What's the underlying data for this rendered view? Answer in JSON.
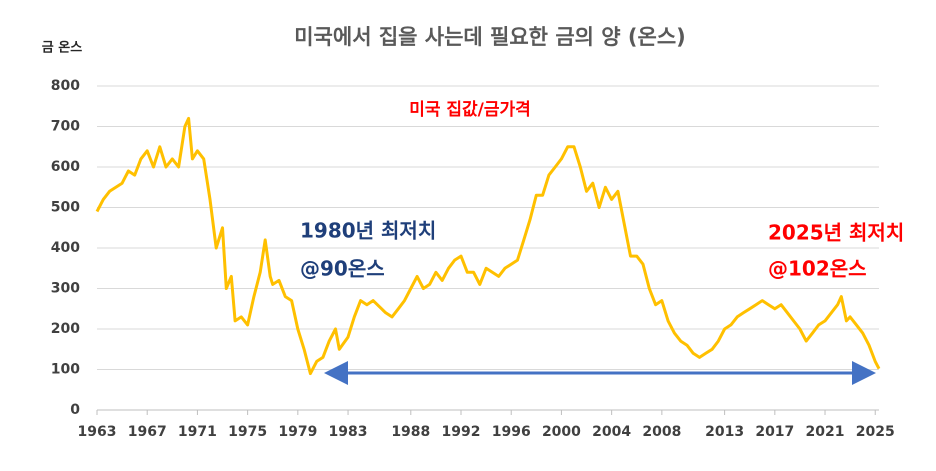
{
  "chart_data": {
    "type": "line",
    "title": "미국에서 집을 사는데 필요한 금의 양 (온스)",
    "y_label": "금 온스",
    "annotations": [
      "미국 집값/금가격",
      "1980년 최저치",
      "@90온스",
      "2025년 최저치",
      "@102온스"
    ],
    "x": [
      1963,
      1963.5,
      1964,
      1965,
      1965.5,
      1966,
      1966.5,
      1967,
      1967.5,
      1968,
      1968.5,
      1969,
      1969.5,
      1970,
      1970.3,
      1970.6,
      1971,
      1971.5,
      1972,
      1972.5,
      1973,
      1973.3,
      1973.7,
      1974,
      1974.5,
      1975,
      1975.5,
      1976,
      1976.4,
      1976.8,
      1977,
      1977.5,
      1978,
      1978.5,
      1979,
      1979.5,
      1980,
      1980.5,
      1981,
      1981.5,
      1982,
      1982.3,
      1983,
      1983.5,
      1984,
      1984.5,
      1985,
      1986,
      1986.5,
      1987,
      1987.5,
      1988,
      1988.5,
      1989,
      1989.5,
      1990,
      1990.5,
      1991,
      1991.5,
      1992,
      1992.5,
      1993,
      1993.5,
      1994,
      1995,
      1995.5,
      1996,
      1996.5,
      1997,
      1997.5,
      1998,
      1998.5,
      1999,
      1999.5,
      2000,
      2000.5,
      2001,
      2001.5,
      2002,
      2002.5,
      2003,
      2003.5,
      2004,
      2004.5,
      2005,
      2005.5,
      2006,
      2006.5,
      2007,
      2007.5,
      2008,
      2008.5,
      2009,
      2009.5,
      2010,
      2010.5,
      2011,
      2011.5,
      2012,
      2012.5,
      2013,
      2013.5,
      2014,
      2014.5,
      2015,
      2015.5,
      2016,
      2016.5,
      2017,
      2017.5,
      2018,
      2018.5,
      2019,
      2019.5,
      2020,
      2020.5,
      2021,
      2021.5,
      2022,
      2022.3,
      2022.7,
      2023,
      2023.5,
      2024,
      2024.5,
      2025,
      2025.3
    ],
    "series": [
      {
        "name": "미국 집값/금가격",
        "color": "#ffc000",
        "values": [
          490,
          520,
          540,
          560,
          590,
          580,
          620,
          640,
          600,
          650,
          600,
          620,
          600,
          700,
          720,
          620,
          640,
          620,
          520,
          400,
          450,
          300,
          330,
          220,
          230,
          210,
          280,
          340,
          420,
          330,
          310,
          320,
          280,
          270,
          200,
          150,
          90,
          120,
          130,
          170,
          200,
          150,
          180,
          230,
          270,
          260,
          270,
          240,
          230,
          250,
          270,
          300,
          330,
          300,
          310,
          340,
          320,
          350,
          370,
          380,
          340,
          340,
          310,
          350,
          330,
          350,
          360,
          370,
          420,
          470,
          530,
          530,
          580,
          600,
          620,
          650,
          650,
          600,
          540,
          560,
          500,
          550,
          520,
          540,
          460,
          380,
          380,
          360,
          300,
          260,
          270,
          220,
          190,
          170,
          160,
          140,
          130,
          140,
          150,
          170,
          200,
          210,
          230,
          240,
          250,
          260,
          270,
          260,
          250,
          260,
          240,
          220,
          200,
          170,
          190,
          210,
          220,
          240,
          260,
          280,
          220,
          230,
          210,
          190,
          160,
          120,
          102
        ]
      }
    ],
    "xlim": [
      1963,
      2025.3
    ],
    "xticks": [
      1963,
      1967,
      1971,
      1975,
      1979,
      1983,
      1988,
      1992,
      1996,
      2000,
      2004,
      2008,
      2013,
      2017,
      2021,
      2025
    ],
    "ylim": [
      0,
      800
    ],
    "yticks": [
      0,
      100,
      200,
      300,
      400,
      500,
      600,
      700,
      800
    ],
    "grid": true
  }
}
